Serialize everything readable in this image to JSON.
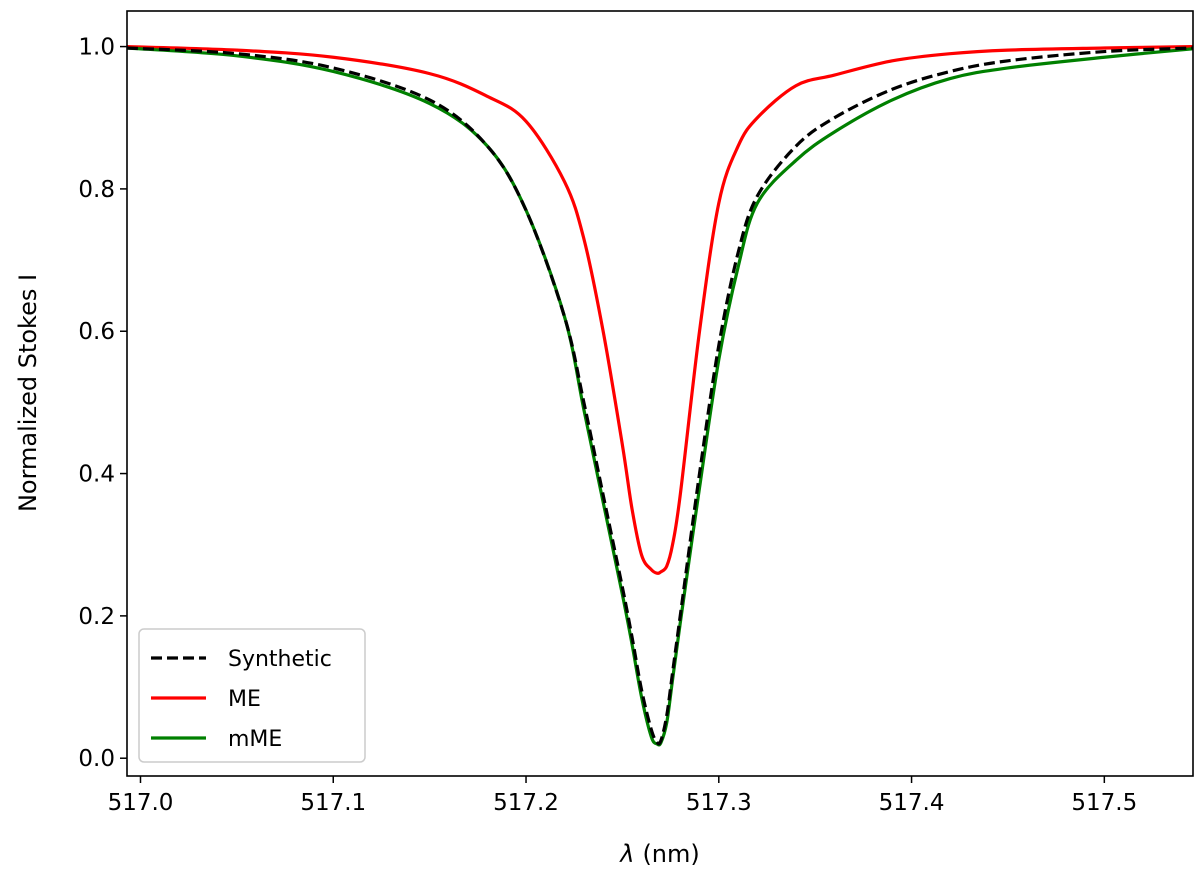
{
  "chart_data": {
    "type": "line",
    "title": "",
    "xlabel": "(nm)",
    "xlabel_symbol": "λ",
    "ylabel": "Normalized Stokes I",
    "xlim": [
      516.993,
      517.546
    ],
    "ylim": [
      -0.025,
      1.05
    ],
    "xticks": [
      517.0,
      517.1,
      517.2,
      517.3,
      517.4,
      517.5
    ],
    "xtick_labels": [
      "517.0",
      "517.1",
      "517.2",
      "517.3",
      "517.4",
      "517.5"
    ],
    "yticks": [
      0.0,
      0.2,
      0.4,
      0.6,
      0.8,
      1.0
    ],
    "ytick_labels": [
      "0.0",
      "0.2",
      "0.4",
      "0.6",
      "0.8",
      "1.0"
    ],
    "grid": false,
    "legend_position": "lower-left",
    "x": [
      516.993,
      517.05,
      517.1,
      517.15,
      517.18,
      517.2,
      517.22,
      517.23,
      517.24,
      517.25,
      517.255,
      517.26,
      517.265,
      517.268,
      517.27,
      517.273,
      517.276,
      517.28,
      517.29,
      517.3,
      517.31,
      517.32,
      517.34,
      517.36,
      517.39,
      517.42,
      517.45,
      517.5,
      517.546
    ],
    "series": [
      {
        "name": "Synthetic",
        "color": "#000000",
        "dash": "dashed",
        "values": [
          0.998,
          0.99,
          0.97,
          0.925,
          0.86,
          0.77,
          0.62,
          0.5,
          0.37,
          0.24,
          0.17,
          0.095,
          0.04,
          0.022,
          0.025,
          0.06,
          0.12,
          0.2,
          0.4,
          0.58,
          0.71,
          0.79,
          0.86,
          0.9,
          0.94,
          0.965,
          0.98,
          0.993,
          0.998
        ]
      },
      {
        "name": "ME",
        "color": "#ff0000",
        "dash": "solid",
        "values": [
          1.0,
          0.995,
          0.985,
          0.962,
          0.93,
          0.895,
          0.81,
          0.73,
          0.6,
          0.44,
          0.35,
          0.285,
          0.265,
          0.26,
          0.262,
          0.27,
          0.3,
          0.37,
          0.6,
          0.78,
          0.86,
          0.9,
          0.945,
          0.96,
          0.98,
          0.99,
          0.995,
          0.998,
          1.0
        ]
      },
      {
        "name": "mME",
        "color": "#008000",
        "dash": "solid",
        "values": [
          0.998,
          0.987,
          0.965,
          0.92,
          0.86,
          0.77,
          0.62,
          0.49,
          0.36,
          0.23,
          0.16,
          0.085,
          0.03,
          0.02,
          0.022,
          0.05,
          0.11,
          0.19,
          0.38,
          0.56,
          0.69,
          0.78,
          0.84,
          0.88,
          0.925,
          0.955,
          0.97,
          0.985,
          0.997
        ]
      }
    ]
  }
}
